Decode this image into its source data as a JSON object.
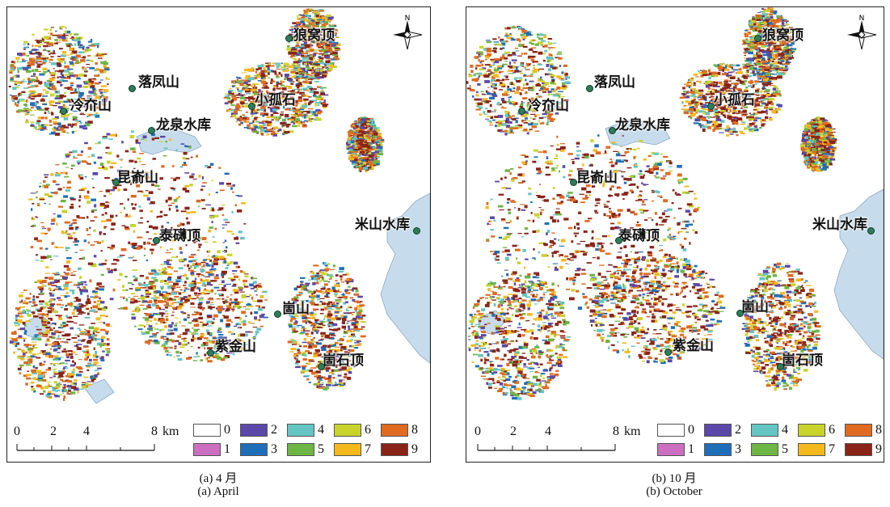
{
  "panels": [
    {
      "id": "a",
      "caption_cn": "(a) 4 月",
      "caption_en": "(a) April",
      "places": [
        {
          "name": "狼窝顶"
        },
        {
          "name": "落凤山"
        },
        {
          "name": "冷夼山"
        },
        {
          "name": "小孤石"
        },
        {
          "name": "龙泉水库"
        },
        {
          "name": "昆嵛山"
        },
        {
          "name": "米山水库"
        },
        {
          "name": "泰礴顶"
        },
        {
          "name": "崮山"
        },
        {
          "name": "紫金山"
        },
        {
          "name": "崮石顶"
        }
      ],
      "north_label": "N",
      "scale": {
        "ticks": [
          "0",
          "2",
          "4",
          "8"
        ],
        "unit": "km"
      },
      "legend": [
        {
          "label": "0",
          "color": "#ffffff"
        },
        {
          "label": "1",
          "color": "#cc6fc0"
        },
        {
          "label": "2",
          "color": "#5b48a8"
        },
        {
          "label": "3",
          "color": "#1f6fb8"
        },
        {
          "label": "4",
          "color": "#64c5c4"
        },
        {
          "label": "5",
          "color": "#6db545"
        },
        {
          "label": "6",
          "color": "#c8d42c"
        },
        {
          "label": "7",
          "color": "#f5b91c"
        },
        {
          "label": "8",
          "color": "#e06a1f"
        },
        {
          "label": "9",
          "color": "#8a2418"
        }
      ]
    },
    {
      "id": "b",
      "caption_cn": "(b) 10 月",
      "caption_en": "(b) October",
      "places": [
        {
          "name": "狼窝顶"
        },
        {
          "name": "落凤山"
        },
        {
          "name": "冷夼山"
        },
        {
          "name": "小孤石"
        },
        {
          "name": "龙泉水库"
        },
        {
          "name": "昆嵛山"
        },
        {
          "name": "米山水库"
        },
        {
          "name": "泰礴顶"
        },
        {
          "name": "崮山"
        },
        {
          "name": "紫金山"
        },
        {
          "name": "崮石顶"
        }
      ],
      "north_label": "N",
      "scale": {
        "ticks": [
          "0",
          "2",
          "4",
          "8"
        ],
        "unit": "km"
      },
      "legend": [
        {
          "label": "0",
          "color": "#ffffff"
        },
        {
          "label": "1",
          "color": "#cc6fc0"
        },
        {
          "label": "2",
          "color": "#5b48a8"
        },
        {
          "label": "3",
          "color": "#1f6fb8"
        },
        {
          "label": "4",
          "color": "#64c5c4"
        },
        {
          "label": "5",
          "color": "#6db545"
        },
        {
          "label": "6",
          "color": "#c8d42c"
        },
        {
          "label": "7",
          "color": "#f5b91c"
        },
        {
          "label": "8",
          "color": "#e06a1f"
        },
        {
          "label": "9",
          "color": "#8a2418"
        }
      ]
    }
  ],
  "colors": {
    "water": "#c6dcec",
    "water_edge": "#8aa9c4",
    "label_dot": "#2e7d5a"
  }
}
